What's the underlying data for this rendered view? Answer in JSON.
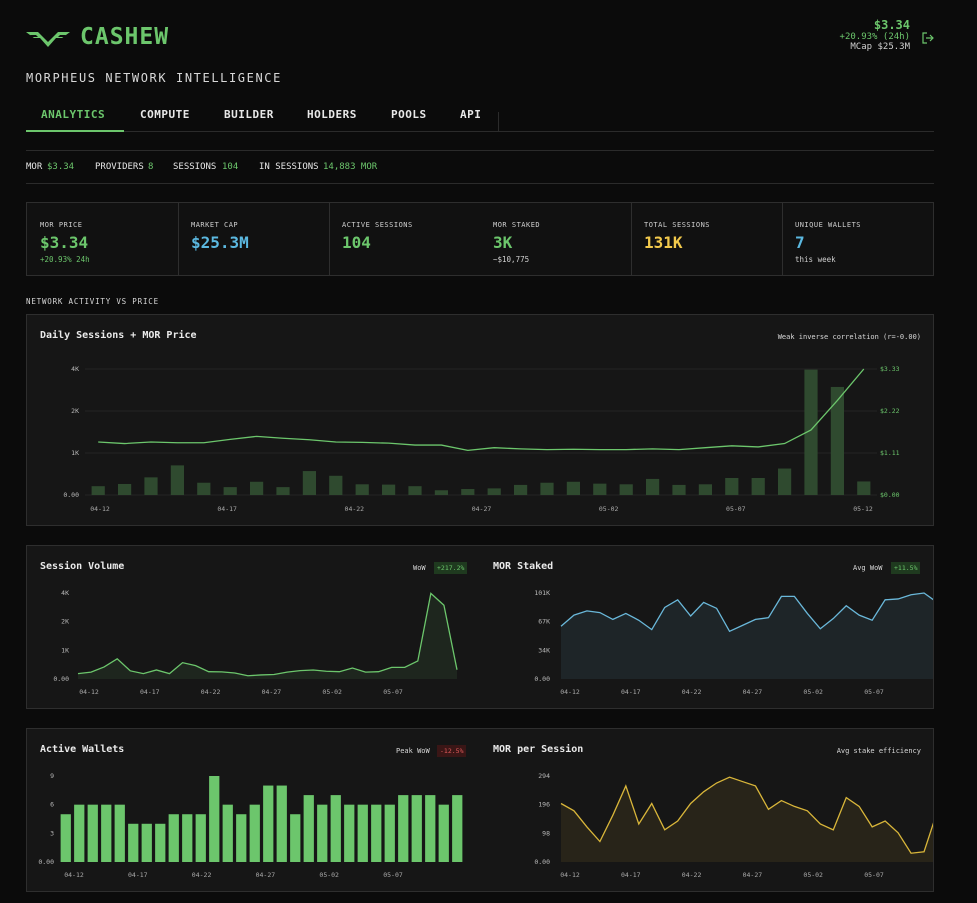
{
  "header": {
    "brand": "CASHEW",
    "subtitle": "MORPHEUS NETWORK INTELLIGENCE",
    "price": "$3.34",
    "change": "+20.93% (24h)",
    "mcap": "MCap $25.3M",
    "logo_icon": "cashew-wing-logo",
    "logout_icon": "logout-icon"
  },
  "tabs": [
    "ANALYTICS",
    "COMPUTE",
    "BUILDER",
    "HOLDERS",
    "POOLS",
    "API"
  ],
  "ticker": {
    "mor_label": "MOR",
    "mor_value": "$3.34",
    "providers_label": "PROVIDERS",
    "providers_value": "8",
    "sessions_label": "SESSIONS",
    "sessions_value": "104",
    "insessions_label": "IN SESSIONS",
    "insessions_value": "14,883 MOR"
  },
  "stats": [
    {
      "label": "MOR PRICE",
      "value": "$3.34",
      "sub": "+20.93% 24h",
      "color": "#6cc66c"
    },
    {
      "label": "MARKET CAP",
      "value": "$25.3M",
      "sub": "",
      "color": "#5bb8e0"
    },
    {
      "label": "ACTIVE SESSIONS",
      "value": "104",
      "sub": "",
      "color": "#6cc66c"
    },
    {
      "label": "MOR STAKED",
      "value": "3K",
      "sub": "~$10,775",
      "color": "#6cc66c"
    },
    {
      "label": "TOTAL SESSIONS",
      "value": "131K",
      "sub": "",
      "color": "#f2c94c"
    },
    {
      "label": "UNIQUE WALLETS",
      "value": "7",
      "sub": "this week",
      "color": "#5bb8e0"
    }
  ],
  "section_label": "NETWORK ACTIVITY VS PRICE",
  "panels": {
    "daily": {
      "title": "Daily Sessions + MOR Price",
      "note": "Weak inverse correlation (r=-0.00)"
    },
    "volume": {
      "title": "Session Volume",
      "note": "WoW",
      "badge": "+217.2%"
    },
    "staked": {
      "title": "MOR Staked",
      "note": "Avg WoW",
      "badge": "+11.5%"
    },
    "wallets": {
      "title": "Active Wallets",
      "note": "Peak WoW",
      "badge": "-12.5%"
    },
    "mps": {
      "title": "MOR per Session",
      "note": "Avg stake efficiency"
    }
  },
  "chart_data": [
    {
      "type": "bar",
      "name_ref": "Daily Sessions + MOR Price",
      "x_ticks": [
        "04-12",
        "04-17",
        "04-22",
        "04-27",
        "05-02",
        "05-07",
        "05-12"
      ],
      "y_ticks": [
        "0.00",
        "1K",
        "2K",
        "4K"
      ],
      "y2_ticks": [
        "$0.00",
        "$1.11",
        "$2.22",
        "$3.33"
      ],
      "ylim": [
        0,
        4000
      ],
      "y2lim": [
        0,
        3.33
      ],
      "sessions": [
        280,
        350,
        560,
        940,
        390,
        250,
        420,
        250,
        760,
        610,
        340,
        330,
        280,
        150,
        190,
        210,
        320,
        390,
        420,
        360,
        340,
        510,
        320,
        340,
        540,
        540,
        840,
        3980,
        3430,
        430
      ],
      "price": [
        1.4,
        1.36,
        1.4,
        1.38,
        1.38,
        1.47,
        1.55,
        1.5,
        1.46,
        1.4,
        1.39,
        1.37,
        1.32,
        1.32,
        1.18,
        1.25,
        1.22,
        1.2,
        1.21,
        1.2,
        1.2,
        1.22,
        1.2,
        1.25,
        1.3,
        1.27,
        1.36,
        1.72,
        2.5,
        3.33
      ],
      "bar_color": "#2f4a2f",
      "line_color": "#6cc66c"
    },
    {
      "type": "area",
      "name_ref": "Session Volume",
      "x_ticks": [
        "04-12",
        "04-17",
        "04-22",
        "04-27",
        "05-02",
        "05-07"
      ],
      "y_ticks": [
        "0.00",
        "1K",
        "2K",
        "4K"
      ],
      "ylim": [
        0,
        4000
      ],
      "values": [
        250,
        320,
        560,
        940,
        380,
        250,
        420,
        250,
        760,
        620,
        340,
        330,
        280,
        150,
        190,
        210,
        320,
        390,
        420,
        360,
        340,
        510,
        320,
        340,
        540,
        540,
        840,
        3980,
        3430,
        430
      ],
      "color": "#6cc66c"
    },
    {
      "type": "area",
      "name_ref": "MOR Staked",
      "x_ticks": [
        "04-12",
        "04-17",
        "04-22",
        "04-27",
        "05-02",
        "05-07"
      ],
      "y_ticks": [
        "0.00",
        "34K",
        "67K",
        "101K"
      ],
      "ylim": [
        0,
        101000
      ],
      "values": [
        62000,
        75000,
        80000,
        78000,
        70000,
        77000,
        69000,
        58000,
        84000,
        93000,
        74000,
        90000,
        83000,
        56000,
        63000,
        70000,
        72000,
        97000,
        97000,
        77000,
        59000,
        71000,
        86000,
        75000,
        69000,
        93000,
        94000,
        99000,
        101000,
        90000
      ],
      "color": "#6ab8da"
    },
    {
      "type": "bar",
      "name_ref": "Active Wallets",
      "x_ticks": [
        "04-12",
        "04-17",
        "04-22",
        "04-27",
        "05-02",
        "05-07"
      ],
      "y_ticks": [
        "0.00",
        "3",
        "6",
        "9"
      ],
      "ylim": [
        0,
        9
      ],
      "values": [
        5,
        6,
        6,
        6,
        6,
        4,
        4,
        4,
        5,
        5,
        5,
        9,
        6,
        5,
        6,
        8,
        8,
        5,
        7,
        6,
        7,
        6,
        6,
        6,
        6,
        7,
        7,
        7,
        6,
        7
      ],
      "color": "#6cc66c"
    },
    {
      "type": "area",
      "name_ref": "MOR per Session",
      "x_ticks": [
        "04-12",
        "04-17",
        "04-22",
        "04-27",
        "05-02",
        "05-07"
      ],
      "y_ticks": [
        "0.00",
        "98",
        "196",
        "294"
      ],
      "ylim": [
        0,
        294
      ],
      "values": [
        200,
        175,
        120,
        70,
        160,
        260,
        130,
        200,
        110,
        140,
        200,
        240,
        270,
        290,
        275,
        260,
        180,
        210,
        190,
        175,
        130,
        110,
        220,
        190,
        120,
        140,
        100,
        30,
        35,
        170
      ],
      "color": "#d9b63a"
    }
  ]
}
